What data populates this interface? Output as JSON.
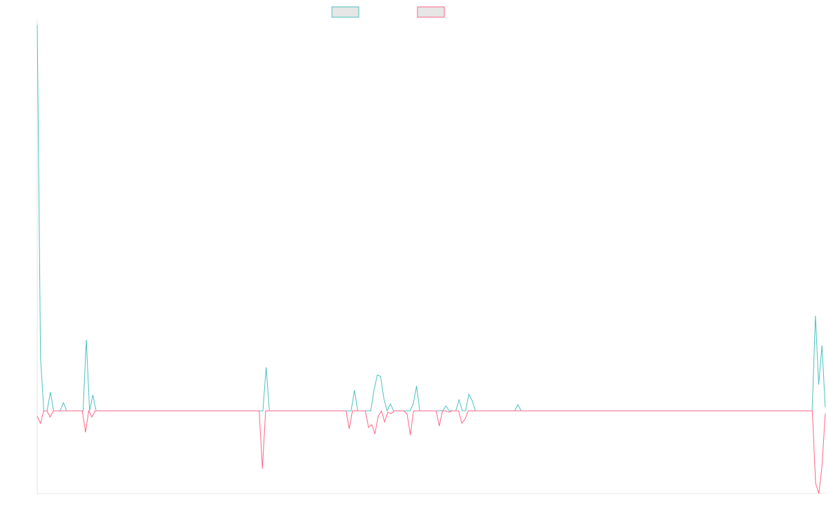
{
  "chart_data": {
    "type": "line",
    "title": "",
    "xlabel": "",
    "ylabel": "",
    "ylim": [
      -120,
      560
    ],
    "baseline": 0,
    "grid": false,
    "legend": "top-center",
    "series": [
      {
        "color": "#4bc0c0",
        "fill": "#e6e6e6",
        "values": [
          560,
          77,
          0,
          0,
          27,
          0,
          0,
          0,
          12,
          0,
          0,
          0,
          0,
          0,
          0,
          103,
          0,
          23,
          0,
          0,
          0,
          0,
          0,
          0,
          0,
          0,
          0,
          0,
          0,
          0,
          0,
          0,
          0,
          0,
          0,
          0,
          0,
          0,
          0,
          0,
          0,
          0,
          0,
          0,
          0,
          0,
          0,
          0,
          0,
          0,
          0,
          0,
          0,
          0,
          0,
          0,
          0,
          0,
          0,
          0,
          0,
          0,
          0,
          0,
          0,
          0,
          0,
          0,
          0,
          0,
          63,
          0,
          0,
          0,
          0,
          0,
          0,
          0,
          0,
          0,
          0,
          0,
          0,
          0,
          0,
          0,
          0,
          0,
          0,
          0,
          0,
          0,
          0,
          0,
          0,
          0,
          0,
          30,
          0,
          0,
          0,
          0,
          0,
          30,
          52,
          50,
          18,
          0,
          10,
          0,
          0,
          0,
          0,
          0,
          0,
          10,
          36,
          0,
          0,
          0,
          0,
          0,
          0,
          0,
          0,
          7,
          0,
          0,
          0,
          16,
          0,
          0,
          24,
          15,
          0,
          0,
          0,
          0,
          0,
          0,
          0,
          0,
          0,
          0,
          0,
          0,
          0,
          9,
          0,
          0,
          0,
          0,
          0,
          0,
          0,
          0,
          0,
          0,
          0,
          0,
          0,
          0,
          0,
          0,
          0,
          0,
          0,
          0,
          0,
          0,
          0,
          0,
          0,
          0,
          0,
          0,
          0,
          0,
          0,
          0,
          0,
          0,
          0,
          0,
          0,
          0,
          0,
          0,
          0,
          0,
          0,
          0,
          0,
          0,
          0,
          0,
          0,
          0,
          0,
          0,
          0,
          0,
          0,
          0,
          0,
          0,
          0,
          0,
          0,
          0,
          0,
          0,
          0,
          0,
          0,
          0,
          0,
          0,
          0,
          0,
          0,
          0,
          0,
          0,
          0,
          0,
          0,
          0,
          0,
          0,
          0,
          0,
          0,
          0,
          0,
          0,
          0,
          0,
          138,
          38,
          95,
          5
        ]
      },
      {
        "color": "#ff6384",
        "fill": "#e6e6e6",
        "values": [
          -8,
          -18,
          0,
          0,
          -9,
          0,
          0,
          0,
          0,
          0,
          0,
          0,
          0,
          0,
          0,
          -31,
          0,
          -9,
          0,
          0,
          0,
          0,
          0,
          0,
          0,
          0,
          0,
          0,
          0,
          0,
          0,
          0,
          0,
          0,
          0,
          0,
          0,
          0,
          0,
          0,
          0,
          0,
          0,
          0,
          0,
          0,
          0,
          0,
          0,
          0,
          0,
          0,
          0,
          0,
          0,
          0,
          0,
          0,
          0,
          0,
          0,
          0,
          0,
          0,
          0,
          0,
          0,
          0,
          0,
          0,
          -84,
          0,
          0,
          0,
          0,
          0,
          0,
          0,
          0,
          0,
          0,
          0,
          0,
          0,
          0,
          0,
          0,
          0,
          0,
          0,
          0,
          0,
          0,
          0,
          0,
          0,
          0,
          -26,
          0,
          0,
          0,
          0,
          0,
          -24,
          -20,
          -33,
          -8,
          0,
          -16,
          -2,
          -4,
          0,
          0,
          0,
          0,
          -5,
          -35,
          0,
          0,
          0,
          0,
          0,
          0,
          0,
          0,
          -22,
          0,
          0,
          -2,
          0,
          0,
          0,
          -18,
          -12,
          0,
          0,
          0,
          0,
          0,
          0,
          0,
          0,
          0,
          0,
          0,
          0,
          0,
          0,
          0,
          0,
          0,
          0,
          0,
          0,
          0,
          0,
          0,
          0,
          0,
          0,
          0,
          0,
          0,
          0,
          0,
          0,
          0,
          0,
          0,
          0,
          0,
          0,
          0,
          0,
          0,
          0,
          0,
          0,
          0,
          0,
          0,
          0,
          0,
          0,
          0,
          0,
          0,
          0,
          0,
          0,
          0,
          0,
          0,
          0,
          0,
          0,
          0,
          0,
          0,
          0,
          0,
          0,
          0,
          0,
          0,
          0,
          0,
          0,
          0,
          0,
          0,
          0,
          0,
          0,
          0,
          0,
          0,
          0,
          0,
          0,
          0,
          0,
          0,
          0,
          0,
          0,
          0,
          0,
          0,
          0,
          0,
          0,
          0,
          0,
          0,
          0,
          0,
          0,
          0,
          0,
          0,
          0,
          -105,
          -120,
          -80,
          -4
        ]
      }
    ]
  }
}
